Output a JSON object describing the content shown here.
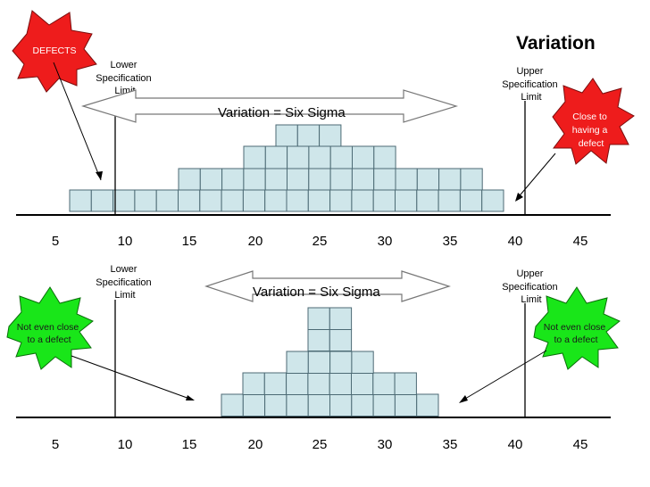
{
  "title": "Variation",
  "colors": {
    "box_fill": "#cfe6ea",
    "box_stroke": "#4c6a74",
    "defect_red": "#ee1c1c",
    "safe_green": "#19e619"
  },
  "top": {
    "arrow_label": "Variation = Six Sigma",
    "lower_limit": [
      "Lower",
      "Specification",
      "Limit"
    ],
    "upper_limit": [
      "Upper",
      "Specification",
      "Limit"
    ],
    "axis_labels": [
      "5",
      "10",
      "15",
      "20",
      "25",
      "30",
      "35",
      "40",
      "45"
    ],
    "callout_left": [
      "DEFECTS"
    ],
    "callout_right": [
      "Close to",
      "having a",
      "defect"
    ]
  },
  "bottom": {
    "arrow_label": "Variation = Six Sigma",
    "lower_limit": [
      "Lower",
      "Specification",
      "Limit"
    ],
    "upper_limit": [
      "Upper",
      "Specification",
      "Limit"
    ],
    "axis_labels": [
      "5",
      "10",
      "15",
      "20",
      "25",
      "30",
      "35",
      "40",
      "45"
    ],
    "callout_left": [
      "Not even close",
      "to a defect"
    ],
    "callout_right": [
      "Not even close",
      "to a defect"
    ]
  }
}
